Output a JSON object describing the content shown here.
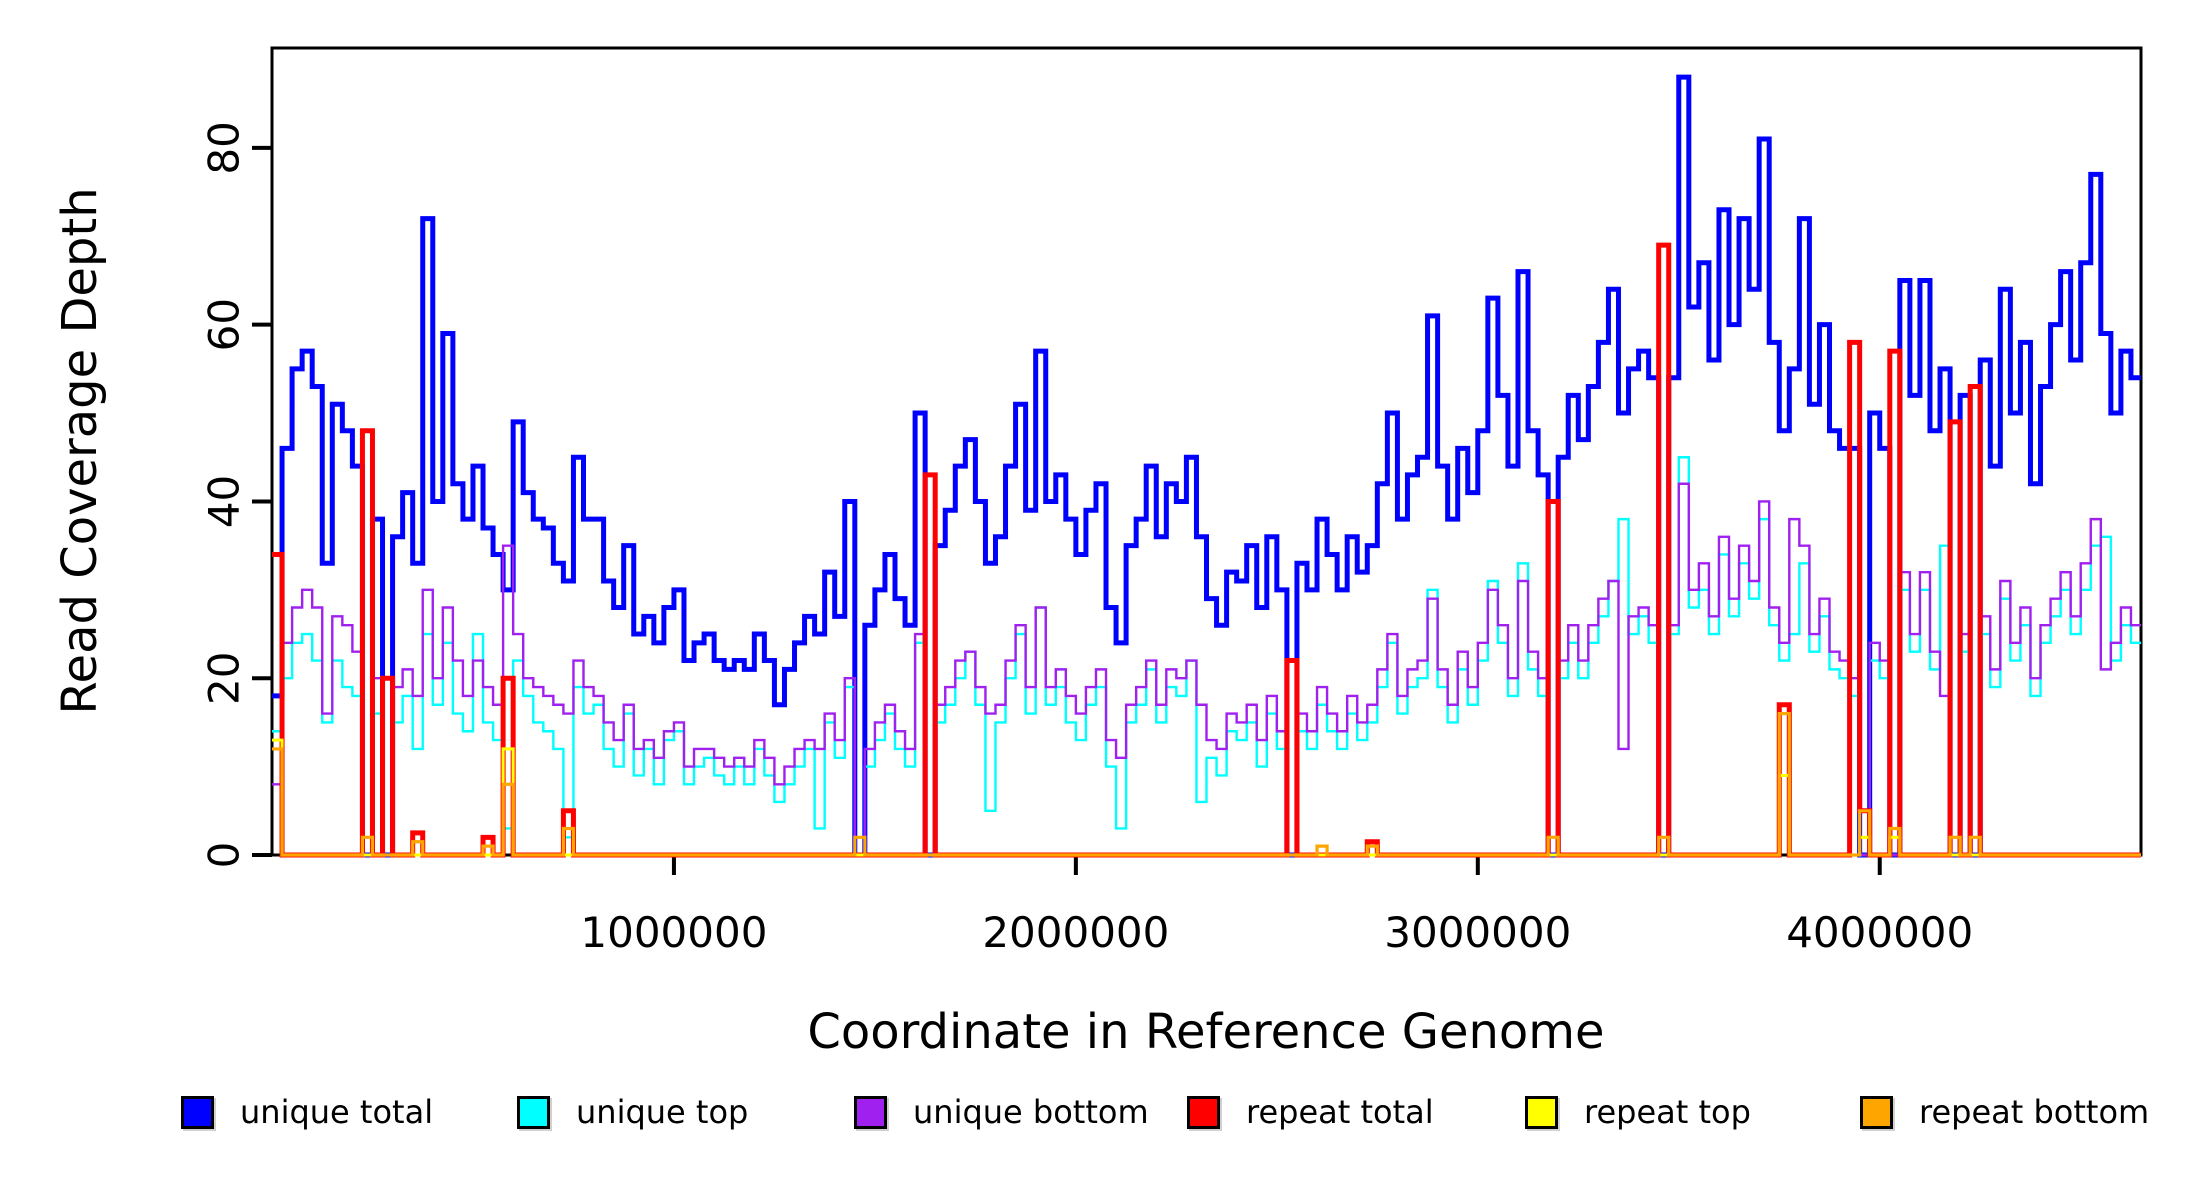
{
  "figure": {
    "background_color": "#FFFFFF",
    "axis_color": "#000000",
    "y_axis": {
      "label": "Read Coverage Depth",
      "tick_labels": [
        "0",
        "20",
        "40",
        "60",
        "80"
      ],
      "tick_values": [
        0,
        20,
        40,
        60,
        80
      ]
    },
    "x_axis": {
      "label": "Coordinate in Reference Genome",
      "tick_labels": [
        "1000000",
        "2000000",
        "3000000",
        "4000000"
      ],
      "tick_values": [
        1000000,
        2000000,
        3000000,
        4000000
      ]
    },
    "legend": {
      "labels": [
        "unique total",
        "unique top",
        "unique bottom",
        "repeat total",
        "repeat top",
        "repeat bottom"
      ]
    }
  },
  "chart_data": {
    "type": "line",
    "subtype": "step-histogram",
    "title": "",
    "xlabel": "Coordinate in Reference Genome",
    "ylabel": "Read Coverage Depth",
    "xlim": [
      0,
      4650000
    ],
    "ylim": [
      0,
      91.3
    ],
    "grid": false,
    "legend_position": "bottom",
    "x_start": 0,
    "bin_size": 25000,
    "series": [
      {
        "name": "unique total",
        "color": "#0000FF",
        "line_width": 5,
        "values": [
          18,
          46,
          55,
          57,
          53,
          33,
          51,
          48,
          44,
          0,
          38,
          0,
          36,
          41,
          33,
          72,
          40,
          59,
          42,
          38,
          44,
          37,
          34,
          30,
          49,
          41,
          38,
          37,
          33,
          31,
          45,
          38,
          38,
          31,
          28,
          35,
          25,
          27,
          24,
          28,
          30,
          22,
          24,
          25,
          22,
          21,
          22,
          21,
          25,
          22,
          17,
          21,
          24,
          27,
          25,
          32,
          27,
          40,
          0,
          26,
          30,
          34,
          29,
          26,
          50,
          0,
          35,
          39,
          44,
          47,
          40,
          33,
          36,
          44,
          51,
          39,
          57,
          40,
          43,
          38,
          34,
          39,
          42,
          28,
          24,
          35,
          38,
          44,
          36,
          42,
          40,
          45,
          36,
          29,
          26,
          32,
          31,
          35,
          28,
          36,
          30,
          0,
          33,
          30,
          38,
          34,
          30,
          36,
          32,
          35,
          42,
          50,
          38,
          43,
          45,
          61,
          44,
          38,
          46,
          41,
          48,
          63,
          52,
          44,
          66,
          48,
          43,
          0,
          45,
          52,
          47,
          53,
          58,
          64,
          50,
          55,
          57,
          54,
          0,
          54,
          88,
          62,
          67,
          56,
          73,
          60,
          72,
          64,
          81,
          58,
          48,
          55,
          72,
          51,
          60,
          48,
          46,
          46,
          0,
          50,
          46,
          0,
          65,
          52,
          65,
          48,
          55,
          0,
          52,
          0,
          56,
          44,
          64,
          50,
          58,
          42,
          53,
          60,
          66,
          56,
          67,
          77,
          59,
          50,
          57,
          54
        ]
      },
      {
        "name": "unique top",
        "color": "#00FFFF",
        "line_width": 2.4,
        "values": [
          14,
          20,
          24,
          25,
          22,
          15,
          22,
          19,
          18,
          0,
          16,
          0,
          15,
          18,
          12,
          25,
          17,
          24,
          16,
          14,
          25,
          15,
          13,
          3,
          22,
          18,
          15,
          14,
          12,
          2,
          19,
          16,
          17,
          12,
          10,
          16,
          9,
          12,
          8,
          13,
          14,
          8,
          10,
          11,
          9,
          8,
          10,
          8,
          12,
          9,
          6,
          8,
          10,
          12,
          3,
          15,
          11,
          19,
          0,
          10,
          13,
          16,
          12,
          10,
          24,
          0,
          15,
          17,
          20,
          23,
          17,
          5,
          15,
          20,
          25,
          16,
          28,
          17,
          19,
          15,
          13,
          17,
          19,
          10,
          3,
          15,
          17,
          21,
          15,
          19,
          18,
          22,
          6,
          11,
          9,
          14,
          13,
          15,
          10,
          16,
          12,
          0,
          14,
          12,
          17,
          14,
          12,
          16,
          13,
          15,
          19,
          24,
          16,
          19,
          20,
          30,
          19,
          15,
          21,
          17,
          22,
          31,
          24,
          18,
          33,
          21,
          18,
          0,
          20,
          24,
          20,
          24,
          27,
          31,
          38,
          25,
          27,
          24,
          0,
          25,
          45,
          28,
          30,
          25,
          34,
          27,
          33,
          29,
          38,
          26,
          22,
          25,
          33,
          23,
          27,
          21,
          20,
          18,
          0,
          22,
          20,
          0,
          30,
          23,
          30,
          21,
          35,
          0,
          23,
          0,
          25,
          19,
          29,
          22,
          26,
          18,
          24,
          27,
          30,
          25,
          30,
          35,
          36,
          22,
          26,
          24
        ]
      },
      {
        "name": "unique bottom",
        "color": "#A020F0",
        "line_width": 2.4,
        "values": [
          8,
          24,
          28,
          30,
          28,
          16,
          27,
          26,
          23,
          0,
          20,
          0,
          19,
          21,
          18,
          30,
          20,
          28,
          22,
          18,
          22,
          19,
          17,
          35,
          25,
          20,
          19,
          18,
          17,
          16,
          22,
          19,
          18,
          15,
          13,
          17,
          12,
          13,
          11,
          14,
          15,
          10,
          12,
          12,
          11,
          10,
          11,
          10,
          13,
          11,
          8,
          10,
          12,
          13,
          12,
          16,
          13,
          20,
          0,
          12,
          15,
          17,
          14,
          12,
          25,
          0,
          17,
          19,
          22,
          23,
          19,
          16,
          17,
          22,
          26,
          19,
          28,
          19,
          21,
          18,
          16,
          19,
          21,
          13,
          11,
          17,
          19,
          22,
          17,
          21,
          20,
          22,
          17,
          13,
          12,
          16,
          15,
          17,
          13,
          18,
          14,
          0,
          16,
          14,
          19,
          16,
          14,
          18,
          15,
          17,
          21,
          25,
          18,
          21,
          22,
          29,
          21,
          17,
          23,
          19,
          24,
          30,
          26,
          20,
          31,
          23,
          20,
          0,
          22,
          26,
          22,
          26,
          29,
          31,
          12,
          27,
          28,
          26,
          0,
          26,
          42,
          30,
          33,
          27,
          36,
          29,
          35,
          31,
          40,
          28,
          24,
          38,
          35,
          25,
          29,
          23,
          22,
          20,
          0,
          24,
          22,
          0,
          32,
          25,
          32,
          23,
          18,
          0,
          25,
          0,
          27,
          21,
          31,
          24,
          28,
          20,
          26,
          29,
          32,
          27,
          33,
          38,
          21,
          24,
          28,
          26
        ]
      },
      {
        "name": "repeat total",
        "color": "#FF0000",
        "line_width": 5,
        "values": [
          34,
          0,
          0,
          0,
          0,
          0,
          0,
          0,
          0,
          48,
          0,
          20,
          0,
          0,
          2.5,
          0,
          0,
          0,
          0,
          0,
          0,
          2,
          0,
          20,
          0,
          0,
          0,
          0,
          0,
          5,
          0,
          0,
          0,
          0,
          0,
          0,
          0,
          0,
          0,
          0,
          0,
          0,
          0,
          0,
          0,
          0,
          0,
          0,
          0,
          0,
          0,
          0,
          0,
          0,
          0,
          0,
          0,
          0,
          0,
          0,
          0,
          0,
          0,
          0,
          0,
          43,
          0,
          0,
          0,
          0,
          0,
          0,
          0,
          0,
          0,
          0,
          0,
          0,
          0,
          0,
          0,
          0,
          0,
          0,
          0,
          0,
          0,
          0,
          0,
          0,
          0,
          0,
          0,
          0,
          0,
          0,
          0,
          0,
          0,
          0,
          0,
          22,
          0,
          0,
          0,
          0,
          0,
          0,
          0,
          1.5,
          0,
          0,
          0,
          0,
          0,
          0,
          0,
          0,
          0,
          0,
          0,
          0,
          0,
          0,
          0,
          0,
          0,
          40,
          0,
          0,
          0,
          0,
          0,
          0,
          0,
          0,
          0,
          0,
          69,
          0,
          0,
          0,
          0,
          0,
          0,
          0,
          0,
          0,
          0,
          0,
          17,
          0,
          0,
          0,
          0,
          0,
          0,
          58,
          5,
          0,
          0,
          57,
          0,
          0,
          0,
          0,
          0,
          49,
          0,
          53,
          0,
          0,
          0,
          0,
          0,
          0,
          0,
          0,
          0,
          0,
          0,
          0,
          0,
          0,
          0,
          0
        ]
      },
      {
        "name": "repeat top",
        "color": "#FFFF00",
        "line_width": 3,
        "values": [
          13,
          0,
          0,
          0,
          0,
          0,
          0,
          0,
          0,
          0,
          0,
          0,
          0,
          0,
          0,
          0,
          0,
          0,
          0,
          0,
          0,
          0,
          0,
          12,
          0,
          0,
          0,
          0,
          0,
          0,
          0,
          0,
          0,
          0,
          0,
          0,
          0,
          0,
          0,
          0,
          0,
          0,
          0,
          0,
          0,
          0,
          0,
          0,
          0,
          0,
          0,
          0,
          0,
          0,
          0,
          0,
          0,
          0,
          0,
          0,
          0,
          0,
          0,
          0,
          0,
          0,
          0,
          0,
          0,
          0,
          0,
          0,
          0,
          0,
          0,
          0,
          0,
          0,
          0,
          0,
          0,
          0,
          0,
          0,
          0,
          0,
          0,
          0,
          0,
          0,
          0,
          0,
          0,
          0,
          0,
          0,
          0,
          0,
          0,
          0,
          0,
          0,
          0,
          0,
          0,
          0,
          0,
          0,
          0,
          0,
          0,
          0,
          0,
          0,
          0,
          0,
          0,
          0,
          0,
          0,
          0,
          0,
          0,
          0,
          0,
          0,
          0,
          0,
          0,
          0,
          0,
          0,
          0,
          0,
          0,
          0,
          0,
          0,
          0,
          0,
          0,
          0,
          0,
          0,
          0,
          0,
          0,
          0,
          0,
          0,
          9,
          0,
          0,
          0,
          0,
          0,
          0,
          0,
          2,
          0,
          0,
          2,
          0,
          0,
          0,
          0,
          0,
          0,
          0,
          0,
          0,
          0,
          0,
          0,
          0,
          0,
          0,
          0,
          0,
          0,
          0,
          0,
          0,
          0,
          0,
          0
        ]
      },
      {
        "name": "repeat bottom",
        "color": "#FFA500",
        "line_width": 3.2,
        "values": [
          12,
          0,
          0,
          0,
          0,
          0,
          0,
          0,
          0,
          2,
          0,
          0,
          0,
          0,
          1.5,
          0,
          0,
          0,
          0,
          0,
          0,
          1,
          0,
          8,
          0,
          0,
          0,
          0,
          0,
          3,
          0,
          0,
          0,
          0,
          0,
          0,
          0,
          0,
          0,
          0,
          0,
          0,
          0,
          0,
          0,
          0,
          0,
          0,
          0,
          0,
          0,
          0,
          0,
          0,
          0,
          0,
          0,
          0,
          2,
          0,
          0,
          0,
          0,
          0,
          0,
          0,
          0,
          0,
          0,
          0,
          0,
          0,
          0,
          0,
          0,
          0,
          0,
          0,
          0,
          0,
          0,
          0,
          0,
          0,
          0,
          0,
          0,
          0,
          0,
          0,
          0,
          0,
          0,
          0,
          0,
          0,
          0,
          0,
          0,
          0,
          0,
          0,
          0,
          0,
          1,
          0,
          0,
          0,
          0,
          1,
          0,
          0,
          0,
          0,
          0,
          0,
          0,
          0,
          0,
          0,
          0,
          0,
          0,
          0,
          0,
          0,
          0,
          2,
          0,
          0,
          0,
          0,
          0,
          0,
          0,
          0,
          0,
          0,
          2,
          0,
          0,
          0,
          0,
          0,
          0,
          0,
          0,
          0,
          0,
          0,
          16,
          0,
          0,
          0,
          0,
          0,
          0,
          0,
          5,
          0,
          0,
          3,
          0,
          0,
          0,
          0,
          0,
          2,
          0,
          2,
          0,
          0,
          0,
          0,
          0,
          0,
          0,
          0,
          0,
          0,
          0,
          0
        ]
      }
    ]
  }
}
